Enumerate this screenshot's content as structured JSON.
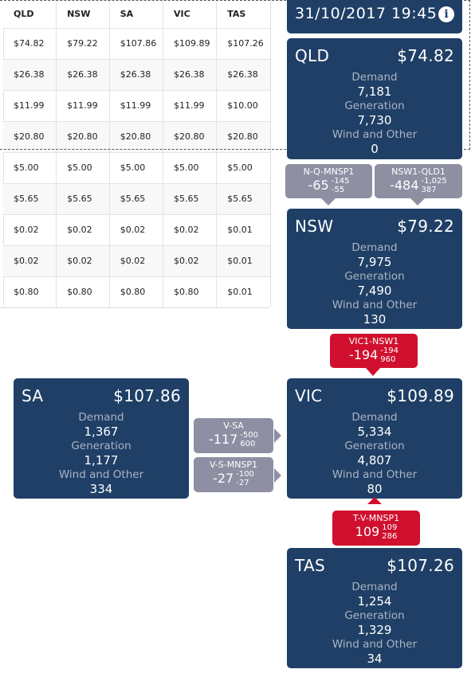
{
  "table": {
    "headers": [
      "QLD",
      "NSW",
      "SA",
      "VIC",
      "TAS"
    ],
    "rows": [
      [
        "$74.82",
        "$79.22",
        "$107.86",
        "$109.89",
        "$107.26"
      ],
      [
        "$26.38",
        "$26.38",
        "$26.38",
        "$26.38",
        "$26.38"
      ],
      [
        "$11.99",
        "$11.99",
        "$11.99",
        "$11.99",
        "$10.00"
      ],
      [
        "$20.80",
        "$20.80",
        "$20.80",
        "$20.80",
        "$20.80"
      ],
      [
        "$5.00",
        "$5.00",
        "$5.00",
        "$5.00",
        "$5.00"
      ],
      [
        "$5.65",
        "$5.65",
        "$5.65",
        "$5.65",
        "$5.65"
      ],
      [
        "$0.02",
        "$0.02",
        "$0.02",
        "$0.02",
        "$0.01"
      ],
      [
        "$0.02",
        "$0.02",
        "$0.02",
        "$0.02",
        "$0.01"
      ],
      [
        "$0.80",
        "$0.80",
        "$0.80",
        "$0.80",
        "$0.01"
      ]
    ]
  },
  "datetime": "31/10/2017 19:45",
  "info_icon": "info-icon",
  "labels": {
    "demand": "Demand",
    "generation": "Generation",
    "wind_other": "Wind and Other"
  },
  "regions": {
    "qld": {
      "name": "QLD",
      "price": "$74.82",
      "demand": "7,181",
      "generation": "7,730",
      "wind_other": "0"
    },
    "nsw": {
      "name": "NSW",
      "price": "$79.22",
      "demand": "7,975",
      "generation": "7,490",
      "wind_other": "130"
    },
    "sa": {
      "name": "SA",
      "price": "$107.86",
      "demand": "1,367",
      "generation": "1,177",
      "wind_other": "334"
    },
    "vic": {
      "name": "VIC",
      "price": "$109.89",
      "demand": "5,334",
      "generation": "4,807",
      "wind_other": "80"
    },
    "tas": {
      "name": "TAS",
      "price": "$107.26",
      "demand": "1,254",
      "generation": "1,329",
      "wind_other": "34"
    }
  },
  "interconnectors": {
    "nqmnsp1": {
      "name": "N-Q-MNSP1",
      "flow": "-65",
      "lim_top": "-145",
      "lim_bottom": "-55",
      "color": "#8e8fa3"
    },
    "nsw1qld1": {
      "name": "NSW1-QLD1",
      "flow": "-484",
      "lim_top": "-1,025",
      "lim_bottom": "387",
      "color": "#8e8fa3"
    },
    "vic1nsw1": {
      "name": "VIC1-NSW1",
      "flow": "-194",
      "lim_top": "-194",
      "lim_bottom": "960",
      "color": "#d0102e"
    },
    "vsa": {
      "name": "V-SA",
      "flow": "-117",
      "lim_top": "-500",
      "lim_bottom": "600",
      "color": "#8e8fa3"
    },
    "vsmnsp1": {
      "name": "V-S-MNSP1",
      "flow": "-27",
      "lim_top": "-100",
      "lim_bottom": "-27",
      "color": "#8e8fa3"
    },
    "tvmnsp1": {
      "name": "T-V-MNSP1",
      "flow": "109",
      "lim_top": "109",
      "lim_bottom": "286",
      "color": "#d0102e"
    }
  }
}
